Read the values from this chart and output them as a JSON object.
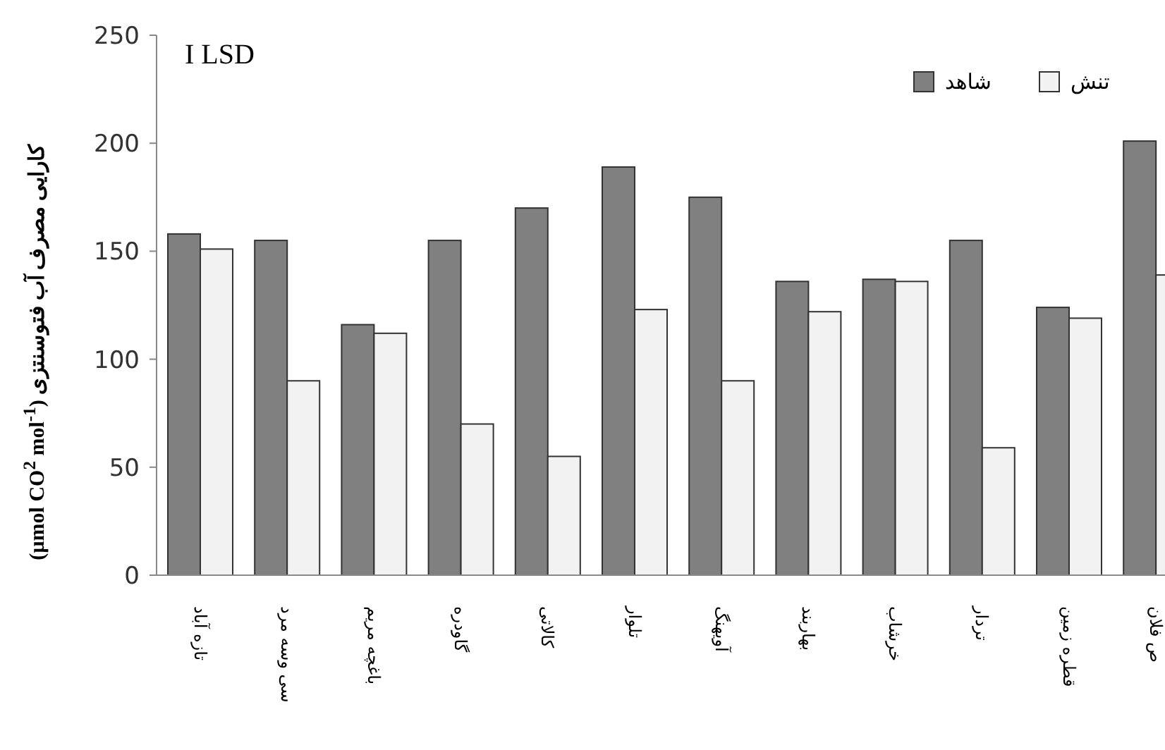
{
  "chart_data": {
    "type": "bar",
    "ylabel": "(µmol CO$^{2}$ mol$^{-1}$) کارایی مصرف آب فتوسنتزی",
    "annotations": [
      "I LSD"
    ],
    "categories": [
      "تازه آباد",
      "سی وسه مرد",
      "باغچه مریم",
      "گاودره",
      "کالاتی",
      "تلوار",
      "آویهنگ",
      "بهاربند",
      "خرشاب",
      "تردار",
      "قطره زمین",
      "ص فلان"
    ],
    "series": [
      {
        "name": "شاهد",
        "color": "#808080",
        "values": [
          158,
          155,
          116,
          155,
          170,
          189,
          175,
          136,
          137,
          155,
          124,
          201
        ]
      },
      {
        "name": "تنش",
        "color": "#f2f2f2",
        "values": [
          151,
          90,
          112,
          70,
          55,
          123,
          90,
          122,
          136,
          59,
          119,
          139
        ]
      }
    ],
    "ylim": [
      0,
      250
    ],
    "yticks": [
      0,
      50,
      100,
      150,
      200,
      250
    ],
    "legend": "top right"
  }
}
